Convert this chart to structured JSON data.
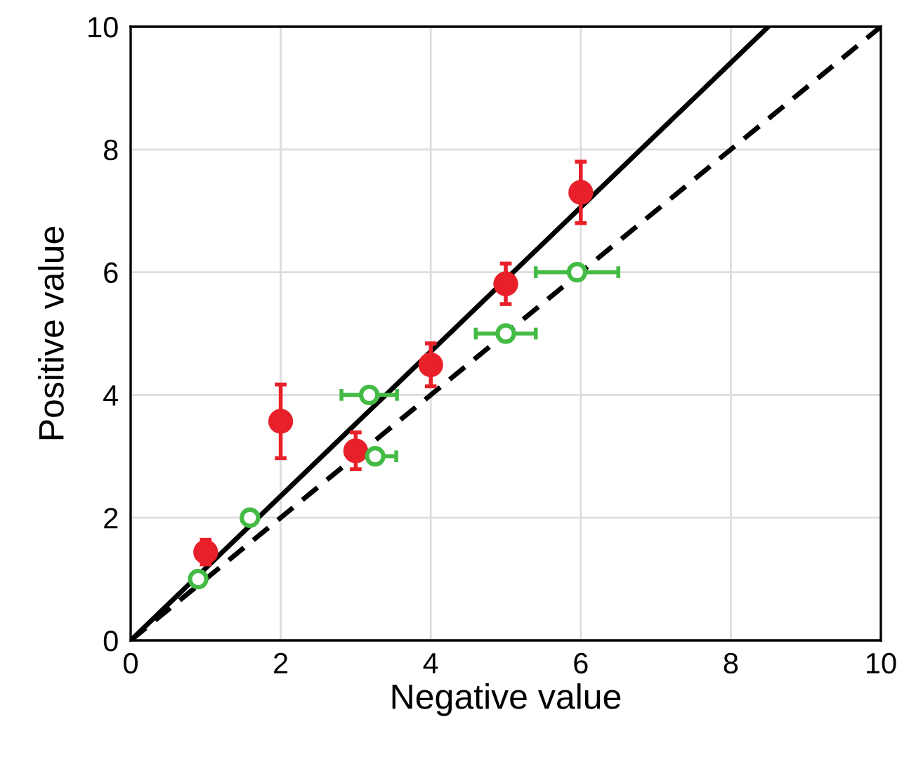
{
  "chart_data": {
    "type": "scatter",
    "xlabel": "Negative value",
    "ylabel": "Positive value",
    "xlim": [
      0,
      10
    ],
    "ylim": [
      0,
      10
    ],
    "xticks": [
      0,
      2,
      4,
      6,
      8,
      10
    ],
    "yticks": [
      0,
      2,
      4,
      6,
      8,
      10
    ],
    "grid": true,
    "series": [
      {
        "type": "line",
        "color": "#000000",
        "x": [
          0,
          8.5
        ],
        "values": [
          0,
          10
        ],
        "line_style": "solid",
        "marker": "none"
      },
      {
        "type": "line",
        "color": "#000000",
        "x": [
          0,
          10
        ],
        "values": [
          0,
          10
        ],
        "line_style": "dashed",
        "marker": "none"
      },
      {
        "type": "scatter",
        "color": "#e8202a",
        "x": [
          1,
          2,
          3,
          4,
          5,
          6
        ],
        "values": [
          1.44,
          3.57,
          3.09,
          4.49,
          5.81,
          7.3
        ],
        "errors": [
          0.2,
          0.6,
          0.3,
          0.35,
          0.33,
          0.5
        ],
        "marker": "circle"
      },
      {
        "color": "#44bb44",
        "marker": "circle",
        "x": [
          0.9,
          1.59,
          3.18,
          3.26,
          5.0,
          5.95
        ],
        "values": [
          1.0,
          2.0,
          4.0,
          3.0,
          5.0,
          6.0
        ],
        "xerrors": [
          null,
          null,
          0.37,
          0.28,
          0.4,
          0.55
        ]
      }
    ]
  }
}
